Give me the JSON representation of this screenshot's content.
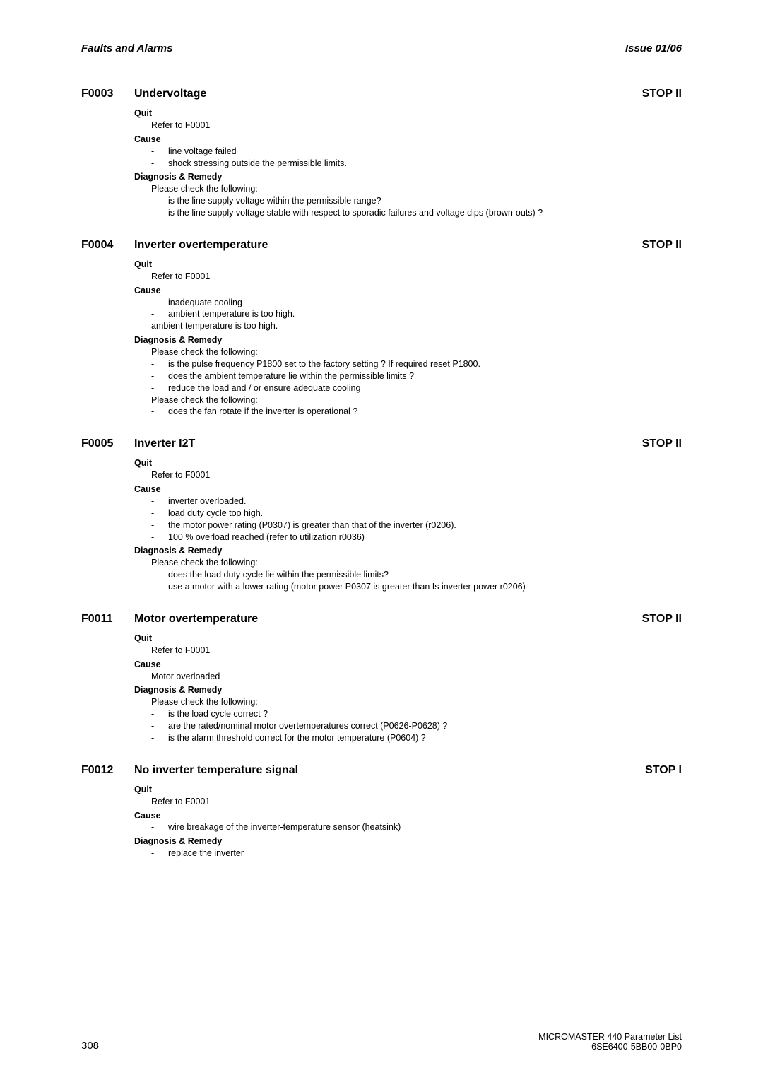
{
  "header": {
    "left": "Faults and Alarms",
    "right": "Issue 01/06"
  },
  "faults": [
    {
      "code": "F0003",
      "title": "Undervoltage",
      "stop": "STOP II",
      "sections": [
        {
          "label": "Quit",
          "lines": [
            {
              "type": "plain",
              "text": "Refer to F0001"
            }
          ]
        },
        {
          "label": "Cause",
          "lines": [
            {
              "type": "bullet",
              "text": "line voltage failed"
            },
            {
              "type": "bullet",
              "text": "shock stressing outside the permissible limits."
            }
          ]
        },
        {
          "label": "Diagnosis & Remedy",
          "lines": [
            {
              "type": "plain",
              "text": "Please check the following:"
            },
            {
              "type": "bullet",
              "text": "is the line supply voltage within the permissible range?"
            },
            {
              "type": "bullet",
              "text": "is the line supply voltage stable with respect to sporadic failures and voltage dips (brown-outs) ?"
            }
          ]
        }
      ]
    },
    {
      "code": "F0004",
      "title": "Inverter overtemperature",
      "stop": "STOP II",
      "sections": [
        {
          "label": "Quit",
          "lines": [
            {
              "type": "plain",
              "text": "Refer to F0001"
            }
          ]
        },
        {
          "label": "Cause",
          "lines": [
            {
              "type": "bullet",
              "text": "inadequate cooling"
            },
            {
              "type": "bullet",
              "text": "ambient temperature is too high."
            },
            {
              "type": "plain",
              "text": "ambient temperature is too high."
            }
          ]
        },
        {
          "label": "Diagnosis & Remedy",
          "lines": [
            {
              "type": "plain",
              "text": "Please check the following:"
            },
            {
              "type": "bullet",
              "text": "is the pulse frequency P1800 set to the factory setting ? If required reset P1800."
            },
            {
              "type": "bullet",
              "text": "does the ambient temperature lie within the permissible limits ?"
            },
            {
              "type": "bullet",
              "text": "reduce the load and / or ensure adequate cooling"
            },
            {
              "type": "plain",
              "text": "Please check the following:"
            },
            {
              "type": "bullet",
              "text": "does the fan rotate if the inverter is operational ?"
            }
          ]
        }
      ]
    },
    {
      "code": "F0005",
      "title": "Inverter I2T",
      "stop": "STOP II",
      "sections": [
        {
          "label": "Quit",
          "lines": [
            {
              "type": "plain",
              "text": "Refer to F0001"
            }
          ]
        },
        {
          "label": "Cause",
          "lines": [
            {
              "type": "bullet",
              "text": "inverter overloaded."
            },
            {
              "type": "bullet",
              "text": "load duty cycle too high."
            },
            {
              "type": "bullet",
              "text": "the motor power rating (P0307) is greater than that of the inverter (r0206)."
            },
            {
              "type": "bullet",
              "text": "100 % overload reached (refer to utilization r0036)"
            }
          ]
        },
        {
          "label": "Diagnosis & Remedy",
          "lines": [
            {
              "type": "plain",
              "text": "Please check the following:"
            },
            {
              "type": "bullet",
              "text": "does the load duty cycle lie within the permissible limits?"
            },
            {
              "type": "bullet",
              "text": "use a motor with a lower rating (motor power P0307 is greater than Is inverter power r0206)"
            }
          ]
        }
      ]
    },
    {
      "code": "F0011",
      "title": "Motor overtemperature",
      "stop": "STOP II",
      "sections": [
        {
          "label": "Quit",
          "lines": [
            {
              "type": "plain",
              "text": "Refer to F0001"
            }
          ]
        },
        {
          "label": "Cause",
          "lines": [
            {
              "type": "plain",
              "text": "Motor overloaded"
            }
          ]
        },
        {
          "label": "Diagnosis & Remedy",
          "lines": [
            {
              "type": "plain",
              "text": "Please check the following:"
            },
            {
              "type": "bullet",
              "text": "is the load cycle correct ?"
            },
            {
              "type": "bullet",
              "text": "are the rated/nominal motor overtemperatures correct (P0626-P0628) ?"
            },
            {
              "type": "bullet",
              "text": "is the alarm threshold correct for the motor temperature (P0604) ?"
            }
          ]
        }
      ]
    },
    {
      "code": "F0012",
      "title": "No inverter temperature signal",
      "stop": "STOP I",
      "sections": [
        {
          "label": "Quit",
          "lines": [
            {
              "type": "plain",
              "text": "Refer to F0001"
            }
          ]
        },
        {
          "label": "Cause",
          "lines": [
            {
              "type": "bullet",
              "text": "wire breakage of the inverter-temperature sensor (heatsink)"
            }
          ]
        },
        {
          "label": "Diagnosis & Remedy",
          "lines": [
            {
              "type": "bullet",
              "text": "replace the inverter"
            }
          ]
        }
      ]
    }
  ],
  "footer": {
    "page_number": "308",
    "right_line1": "MICROMASTER 440    Parameter List",
    "right_line2": "6SE6400-5BB00-0BP0"
  }
}
